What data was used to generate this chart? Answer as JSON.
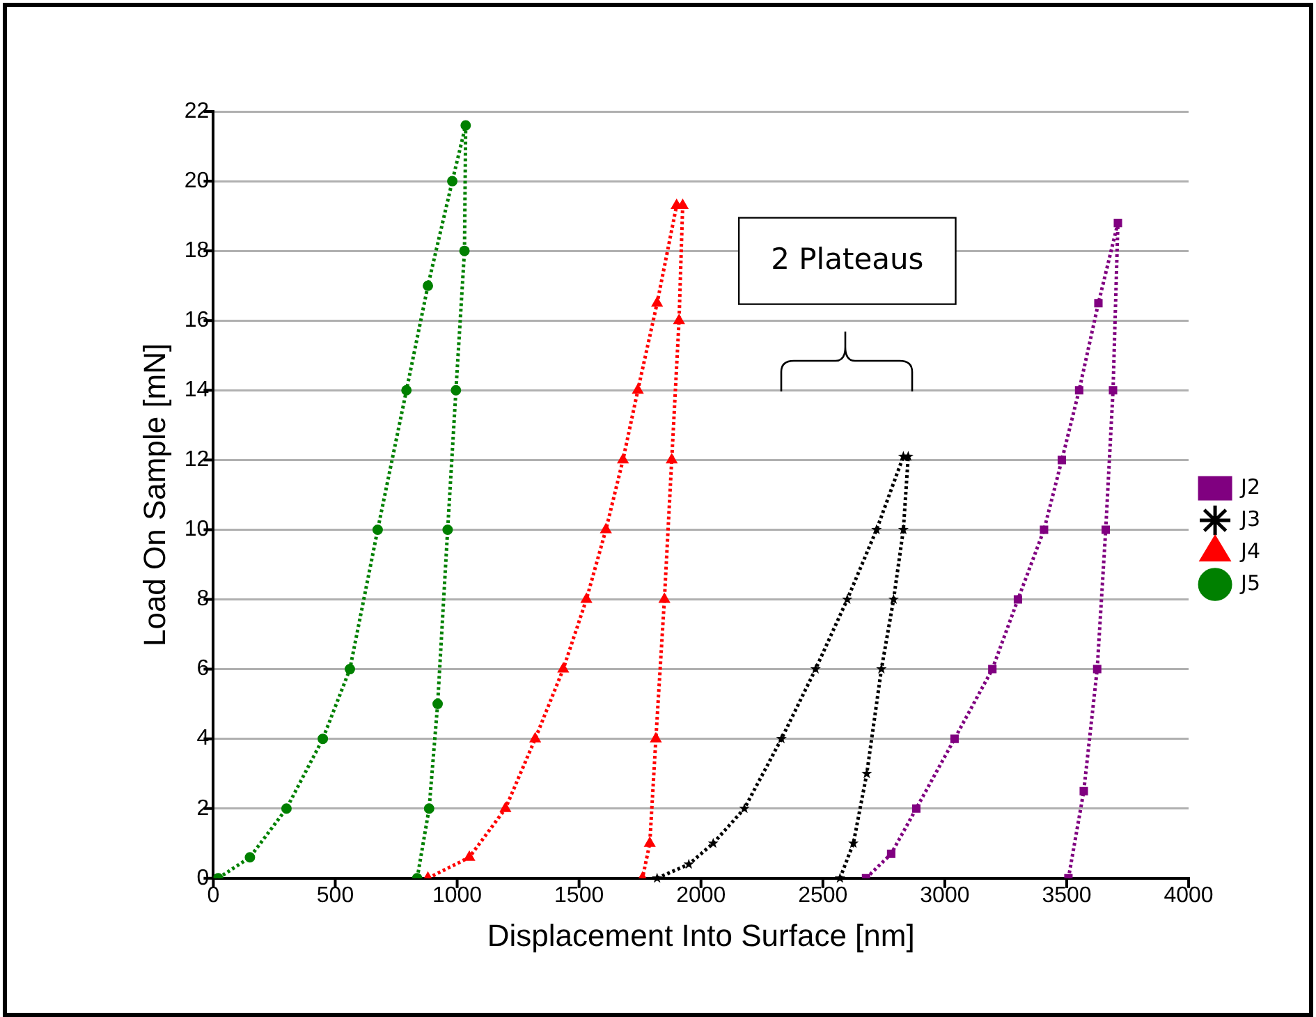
{
  "chart_data": {
    "type": "line",
    "xlabel": "Displacement Into Surface [nm]",
    "ylabel": "Load On Sample [mN]",
    "xlim": [
      0,
      4000
    ],
    "xticks": [
      0,
      500,
      1000,
      1500,
      2000,
      2500,
      3000,
      3500,
      4000
    ],
    "ylim": [
      0,
      22
    ],
    "yticks": [
      0,
      2,
      4,
      6,
      8,
      10,
      12,
      14,
      16,
      18,
      20,
      22
    ],
    "grid": "y",
    "legend": "right",
    "line_style": "dotted",
    "annotations": [
      "2 Plateaus"
    ],
    "series": [
      {
        "name": "J2",
        "color": "#800080",
        "marker": "square",
        "x": [
          2677,
          2780,
          2883,
          3040,
          3195,
          3300,
          3407,
          3480,
          3551,
          3630,
          3710,
          3690,
          3660,
          3625,
          3570,
          3507
        ],
        "values": [
          0,
          0.7,
          2,
          4,
          6,
          8,
          10,
          12,
          14,
          16.5,
          18.8,
          14,
          10,
          6,
          2.5,
          0
        ]
      },
      {
        "name": "J3",
        "color": "#000000",
        "marker": "star",
        "x": [
          1820,
          1950,
          2050,
          2178,
          2330,
          2470,
          2600,
          2720,
          2830,
          2850,
          2830,
          2790,
          2740,
          2680,
          2625,
          2570
        ],
        "values": [
          0,
          0.4,
          1,
          2,
          4,
          6,
          8,
          10,
          12.1,
          12.1,
          10,
          8,
          6,
          3,
          1,
          0
        ]
      },
      {
        "name": "J4",
        "color": "#ff0000",
        "marker": "triangle",
        "x": [
          880,
          1050,
          1198,
          1320,
          1435,
          1530,
          1610,
          1680,
          1741,
          1820,
          1900,
          1925,
          1910,
          1880,
          1850,
          1815,
          1790,
          1760
        ],
        "values": [
          0,
          0.6,
          2,
          4,
          6,
          8,
          10,
          12,
          14,
          16.5,
          19.3,
          19.3,
          16,
          12,
          8,
          4,
          1,
          0
        ]
      },
      {
        "name": "J5",
        "color": "#008000",
        "marker": "circle",
        "x": [
          20,
          150,
          300,
          449,
          560,
          674,
          792,
          880,
          980,
          1035,
          1030,
          995,
          961,
          920,
          885,
          836
        ],
        "values": [
          0,
          0.6,
          2,
          4,
          6,
          10,
          14,
          17,
          20,
          21.6,
          18,
          14,
          10,
          5,
          2,
          0
        ]
      }
    ]
  }
}
